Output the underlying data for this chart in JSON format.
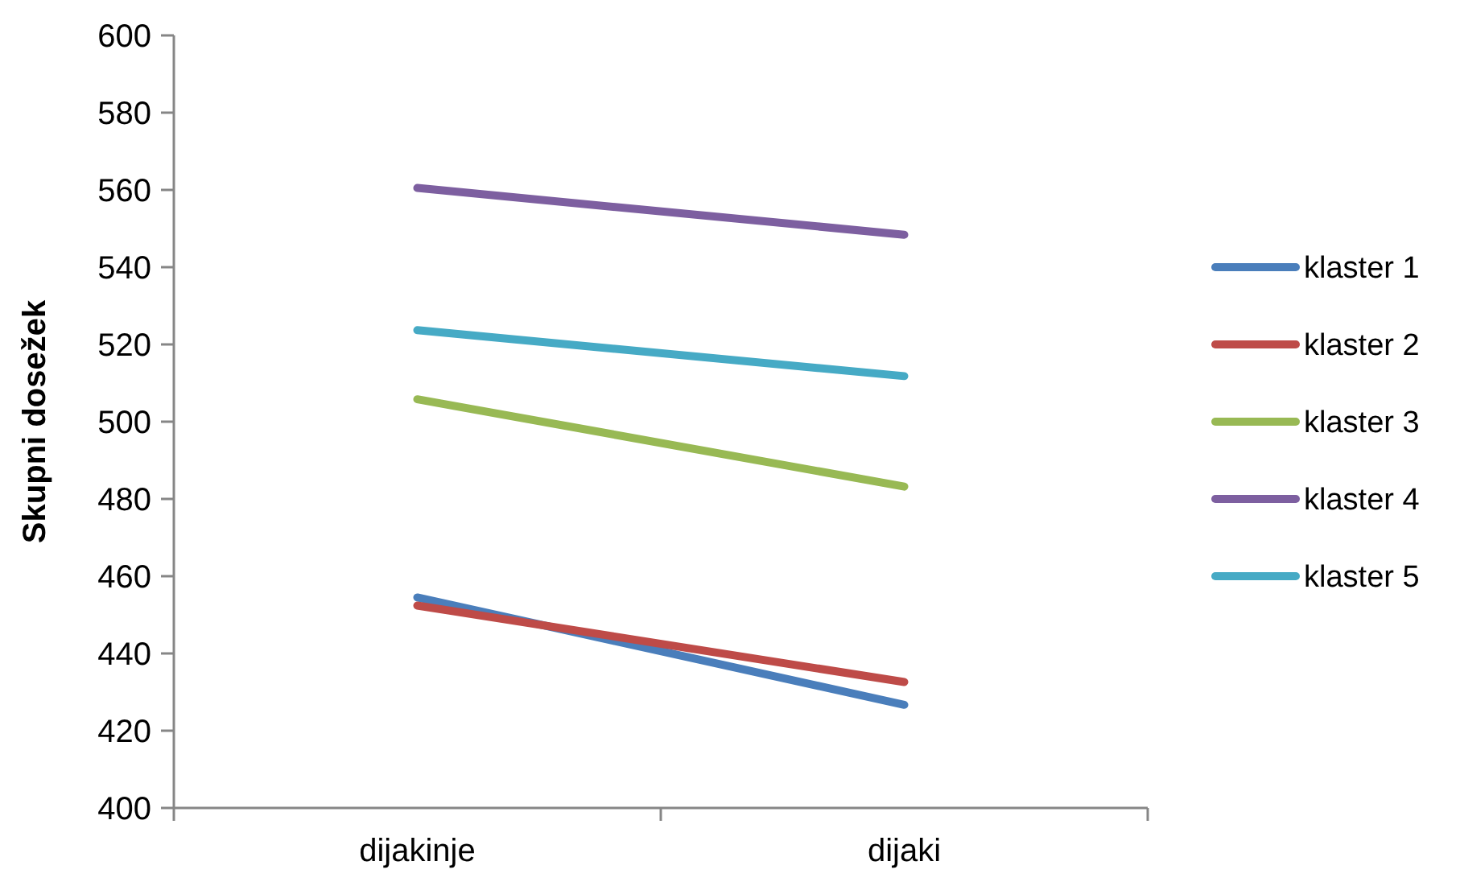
{
  "chart_data": {
    "type": "line",
    "ylabel": "Skupni dosežek",
    "categories": [
      "dijakinje",
      "dijaki"
    ],
    "series": [
      {
        "name": "klaster 1",
        "color": "#4a7ebb",
        "values": [
          454.5,
          426.7
        ]
      },
      {
        "name": "klaster 2",
        "color": "#be4b48",
        "values": [
          452.4,
          432.6
        ]
      },
      {
        "name": "klaster 3",
        "color": "#98b954",
        "values": [
          505.8,
          483.2
        ]
      },
      {
        "name": "klaster 4",
        "color": "#7d5fa0",
        "values": [
          560.5,
          548.4
        ]
      },
      {
        "name": "klaster 5",
        "color": "#46aac5",
        "values": [
          523.7,
          511.8
        ]
      }
    ],
    "ylim": [
      400,
      600
    ],
    "yticks": [
      400,
      420,
      440,
      460,
      480,
      500,
      520,
      540,
      560,
      580,
      600
    ],
    "legend": "right"
  }
}
